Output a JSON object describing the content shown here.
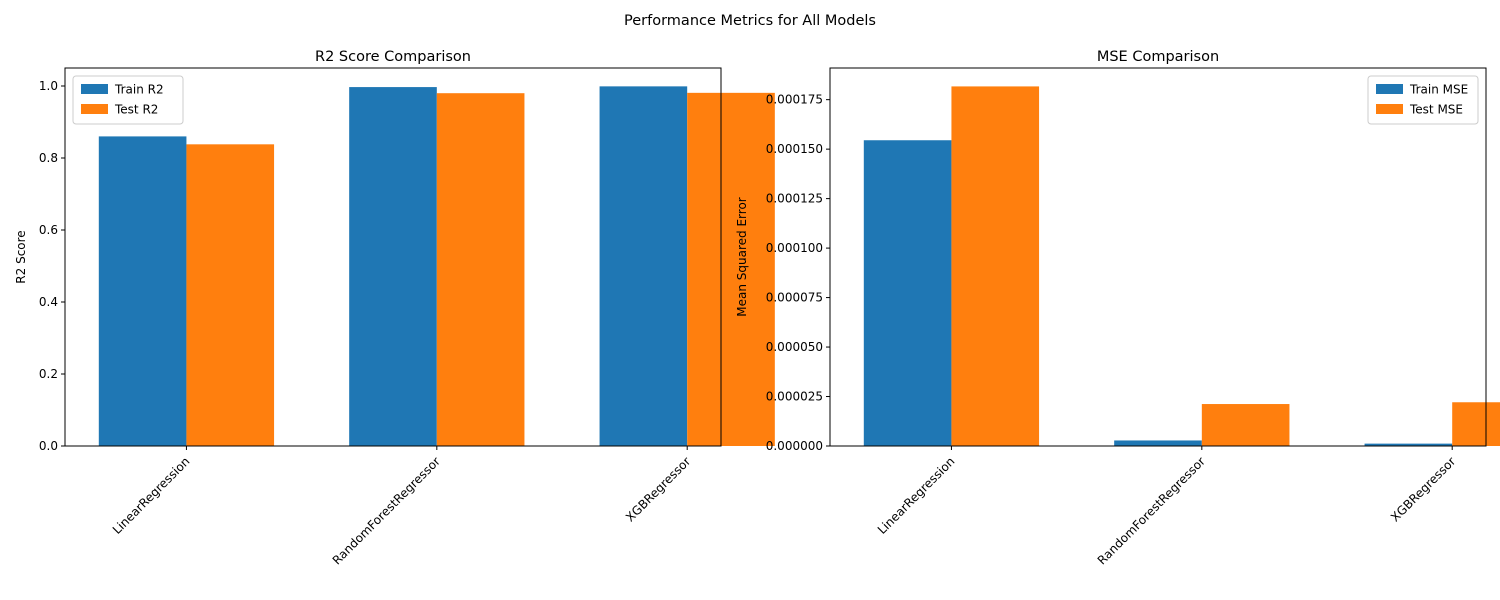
{
  "suptitle": "Performance Metrics for All Models",
  "colors": {
    "train": "#1f77b4",
    "test": "#ff7f0e"
  },
  "chart_data": [
    {
      "type": "bar",
      "title": "R2 Score Comparison",
      "xlabel": "",
      "ylabel": "R2 Score",
      "categories": [
        "LinearRegression",
        "RandomForestRegressor",
        "XGBRegressor"
      ],
      "series": [
        {
          "name": "Train R2",
          "values": [
            0.86,
            0.997,
            0.999
          ]
        },
        {
          "name": "Test R2",
          "values": [
            0.838,
            0.98,
            0.981
          ]
        }
      ],
      "ylim": [
        0,
        1.05
      ],
      "yticks": [
        0.0,
        0.2,
        0.4,
        0.6,
        0.8,
        1.0
      ],
      "ytick_labels": [
        "0.0",
        "0.2",
        "0.4",
        "0.6",
        "0.8",
        "1.0"
      ],
      "legend": "upper-left",
      "grid": false
    },
    {
      "type": "bar",
      "title": "MSE Comparison",
      "xlabel": "",
      "ylabel": "Mean Squared Error",
      "categories": [
        "LinearRegression",
        "RandomForestRegressor",
        "XGBRegressor"
      ],
      "series": [
        {
          "name": "Train MSE",
          "values": [
            0.0001545,
            2.8e-06,
            1.2e-06
          ]
        },
        {
          "name": "Test MSE",
          "values": [
            0.0001817,
            2.12e-05,
            2.21e-05
          ]
        }
      ],
      "ylim": [
        0,
        0.000191
      ],
      "yticks": [
        0,
        2.5e-05,
        5e-05,
        7.5e-05,
        0.0001,
        0.000125,
        0.00015,
        0.000175
      ],
      "ytick_labels": [
        "0.000000",
        "0.000025",
        "0.000050",
        "0.000075",
        "0.000100",
        "0.000125",
        "0.000150",
        "0.000175"
      ],
      "legend": "upper-right",
      "grid": false
    }
  ]
}
